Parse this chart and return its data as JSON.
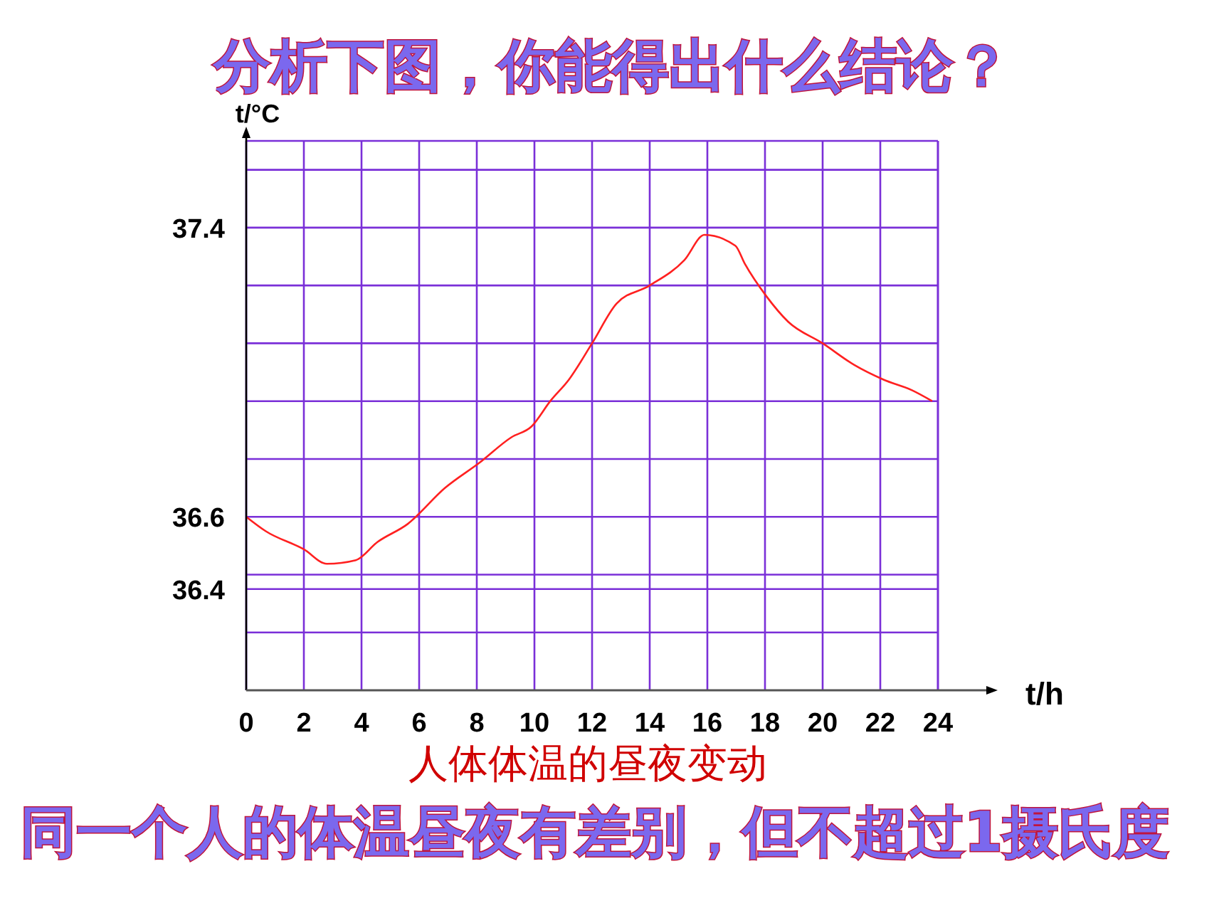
{
  "chart_data": {
    "type": "line",
    "title": "分析下图，你能得出什么结论？",
    "xlabel": "t/h",
    "ylabel": "t/°C",
    "annotations": [
      "人体体温的昼夜变动",
      "同一个人的体温昼夜有差别，但不超过1摄氏度"
    ],
    "x": [
      0,
      0.68,
      2.0,
      2.8,
      3.8,
      4.55,
      5.6,
      6.9,
      8.1,
      9.2,
      9.9,
      10.55,
      11.2,
      12.0,
      12.85,
      14.0,
      15.2,
      15.9,
      16.97,
      17.3,
      18.05,
      18.8,
      20.0,
      21.1,
      22.1,
      23.1,
      23.8
    ],
    "series": [
      {
        "color": "#ff2020",
        "values": [
          36.6,
          36.56,
          36.51,
          36.47,
          36.48,
          36.53,
          36.58,
          36.68,
          36.75,
          36.82,
          36.85,
          36.92,
          36.98,
          37.08,
          37.19,
          37.24,
          37.31,
          37.38,
          37.35,
          37.3,
          37.21,
          37.14,
          37.08,
          37.02,
          36.98,
          36.95,
          36.92
        ]
      }
    ],
    "xlim": [
      0,
      24
    ],
    "xticks": [
      0,
      2,
      4,
      6,
      8,
      10,
      12,
      14,
      16,
      18,
      20,
      22,
      24
    ],
    "ylim": [
      36.12,
      37.64
    ],
    "yticks": [
      {
        "value": 36.28,
        "label": null
      },
      {
        "value": 36.4,
        "label": "36.4"
      },
      {
        "value": 36.44,
        "label": null
      },
      36.6,
      {
        "value": 36.76,
        "label": null
      },
      {
        "value": 36.92,
        "label": null
      },
      {
        "value": 37.08,
        "label": null
      },
      {
        "value": 37.24,
        "label": null
      },
      37.4,
      {
        "value": 37.56,
        "label": null
      }
    ],
    "grid": true,
    "marker": "none",
    "line_style": "solid"
  }
}
